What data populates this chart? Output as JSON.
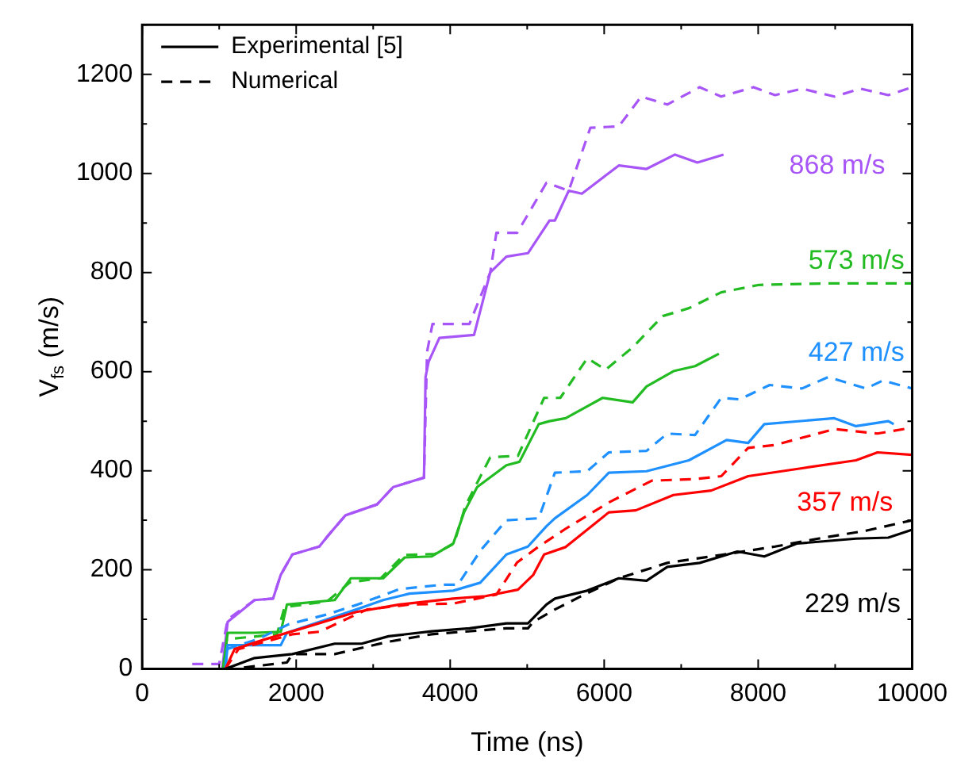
{
  "chart_data": {
    "type": "line",
    "xlabel": "Time (ns)",
    "ylabel": "V$_{fs}$ (m/s)",
    "xlim": [
      0,
      10000
    ],
    "xticks": [
      0,
      {
        "value": 1000,
        "label": null
      },
      2000,
      {
        "value": 3000,
        "label": null
      },
      4000,
      {
        "value": 5000,
        "label": null
      },
      6000,
      {
        "value": 7000,
        "label": null
      },
      8000,
      {
        "value": 9000,
        "label": null
      },
      10000
    ],
    "ylim": [
      0,
      1300
    ],
    "yticks": [
      0,
      {
        "value": 100,
        "label": null
      },
      200,
      {
        "value": 300,
        "label": null
      },
      400,
      {
        "value": 500,
        "label": null
      },
      600,
      {
        "value": 700,
        "label": null
      },
      800,
      {
        "value": 900,
        "label": null
      },
      1000,
      {
        "value": 1100,
        "label": null
      },
      1200,
      {
        "value": 1300,
        "label": null
      }
    ],
    "grid": false,
    "legend": "top left",
    "marker": "none",
    "series": [
      {
        "name": "Experimental [5]",
        "color": "#000000",
        "line_style": "solid",
        "x": [
          1080,
          1460,
          1950,
          2500,
          2850,
          3200,
          3760,
          4250,
          4730,
          5010,
          5250,
          5360,
          5780,
          6190,
          6550,
          6820,
          7240,
          7730,
          8080,
          8500,
          9270,
          9690,
          10000
        ],
        "values": [
          0,
          22,
          30,
          51,
          51,
          66,
          76,
          82,
          92,
          92,
          130,
          142,
          158,
          183,
          178,
          206,
          214,
          237,
          227,
          253,
          263,
          265,
          281
        ]
      },
      {
        "name": "Numerical",
        "color": "#000000",
        "line_style": "dashed",
        "x": [
          1320,
          1880,
          1950,
          2500,
          3200,
          3760,
          4730,
          5010,
          5080,
          5360,
          5780,
          6190,
          6820,
          7520,
          8220,
          8780,
          9400,
          10000
        ],
        "values": [
          3,
          13,
          30,
          30,
          55,
          70,
          82,
          82,
          95,
          120,
          153,
          183,
          214,
          230,
          247,
          263,
          279,
          300
        ]
      },
      {
        "color": "#ff0000",
        "line_style": "solid",
        "x": [
          1080,
          1200,
          1600,
          2080,
          2780,
          3340,
          4040,
          4460,
          4880,
          5080,
          5220,
          5500,
          6060,
          6410,
          6900,
          7390,
          7870,
          8570,
          9270,
          9550,
          10000
        ],
        "values": [
          0,
          40,
          60,
          82,
          115,
          130,
          142,
          147,
          160,
          190,
          231,
          246,
          316,
          320,
          351,
          360,
          389,
          405,
          421,
          437,
          432
        ]
      },
      {
        "color": "#ff0000",
        "line_style": "dashed",
        "x": [
          1080,
          1250,
          1950,
          2300,
          2920,
          3470,
          4040,
          4600,
          4870,
          5150,
          5500,
          6060,
          6620,
          7180,
          7520,
          7870,
          8220,
          8990,
          9550,
          10000
        ],
        "values": [
          0,
          40,
          70,
          75,
          120,
          130,
          132,
          150,
          215,
          247,
          283,
          336,
          380,
          383,
          389,
          446,
          452,
          484,
          475,
          487
        ]
      },
      {
        "color": "#1e90ff",
        "line_style": "solid",
        "x": [
          1080,
          1110,
          1800,
          1880,
          2300,
          2780,
          3130,
          3470,
          4040,
          4390,
          4730,
          5010,
          5250,
          5360,
          5780,
          6060,
          6550,
          7100,
          7590,
          7870,
          8080,
          8990,
          9270,
          9690,
          9760
        ],
        "values": [
          0,
          48,
          48,
          73,
          95,
          120,
          139,
          152,
          158,
          174,
          231,
          247,
          288,
          304,
          351,
          396,
          399,
          421,
          462,
          456,
          494,
          506,
          490,
          500,
          494
        ]
      },
      {
        "color": "#1e90ff",
        "line_style": "dashed",
        "x": [
          1080,
          1100,
          1500,
          1900,
          2400,
          2800,
          3340,
          3900,
          4100,
          4400,
          4730,
          5150,
          5360,
          5780,
          6060,
          6550,
          6820,
          7180,
          7520,
          7760,
          8150,
          8570,
          8910,
          9400,
          9620,
          10000
        ],
        "values": [
          0,
          40,
          60,
          90,
          110,
          130,
          161,
          170,
          170,
          240,
          300,
          304,
          396,
          399,
          437,
          440,
          475,
          472,
          547,
          544,
          573,
          566,
          589,
          566,
          582,
          566
        ]
      },
      {
        "color": "#22bb22",
        "line_style": "solid",
        "x": [
          1050,
          1110,
          1460,
          1800,
          1880,
          2500,
          2710,
          3130,
          3410,
          3760,
          4040,
          4180,
          4350,
          4730,
          4900,
          5150,
          5290,
          5500,
          5980,
          6370,
          6550,
          6900,
          7180,
          7490
        ],
        "values": [
          0,
          73,
          73,
          75,
          130,
          139,
          183,
          183,
          225,
          227,
          253,
          316,
          367,
          411,
          418,
          494,
          500,
          506,
          547,
          538,
          570,
          601,
          611,
          636
        ]
      },
      {
        "color": "#22bb22",
        "line_style": "dashed",
        "x": [
          1050,
          1100,
          1500,
          1750,
          1850,
          2400,
          2700,
          3100,
          3400,
          3800,
          4050,
          4200,
          4520,
          4880,
          5220,
          5430,
          5780,
          6020,
          6370,
          6760,
          7100,
          7520,
          8010,
          8910,
          10000
        ],
        "values": [
          0,
          60,
          66,
          70,
          125,
          136,
          175,
          183,
          230,
          232,
          253,
          330,
          427,
          430,
          547,
          547,
          627,
          604,
          649,
          712,
          728,
          760,
          775,
          778,
          778
        ]
      },
      {
        "color": "#a855f7",
        "line_style": "solid",
        "x": [
          1040,
          1110,
          1460,
          1700,
          1800,
          1950,
          2300,
          2430,
          2640,
          3050,
          3260,
          3660,
          3680,
          3720,
          3860,
          4310,
          4520,
          4730,
          5010,
          5290,
          5360,
          5540,
          5710,
          6190,
          6550,
          6920,
          7210,
          7550
        ],
        "values": [
          0,
          95,
          139,
          142,
          190,
          231,
          247,
          272,
          310,
          332,
          367,
          386,
          589,
          620,
          668,
          674,
          800,
          832,
          839,
          905,
          905,
          965,
          959,
          1016,
          1009,
          1038,
          1022,
          1038
        ]
      },
      {
        "color": "#a855f7",
        "line_style": "dashed",
        "x": [
          650,
          960,
          1000,
          1110,
          1460,
          1700,
          1800,
          1950,
          2300,
          2430,
          2640,
          3050,
          3260,
          3660,
          3700,
          3770,
          4250,
          4520,
          4600,
          4870,
          5250,
          5360,
          5540,
          5820,
          6190,
          6480,
          6820,
          7240,
          7520,
          7940,
          8220,
          8570,
          8990,
          9330,
          9690,
          10000
        ],
        "values": [
          10,
          10,
          10,
          100,
          139,
          142,
          190,
          231,
          247,
          272,
          310,
          332,
          367,
          386,
          640,
          696,
          696,
          800,
          880,
          880,
          981,
          975,
          965,
          1092,
          1095,
          1155,
          1139,
          1174,
          1155,
          1174,
          1158,
          1171,
          1155,
          1171,
          1158,
          1174
        ]
      }
    ],
    "annotations": [
      "229 m/s",
      "357 m/s",
      "427 m/s",
      "573 m/s",
      "868 m/s"
    ]
  }
}
